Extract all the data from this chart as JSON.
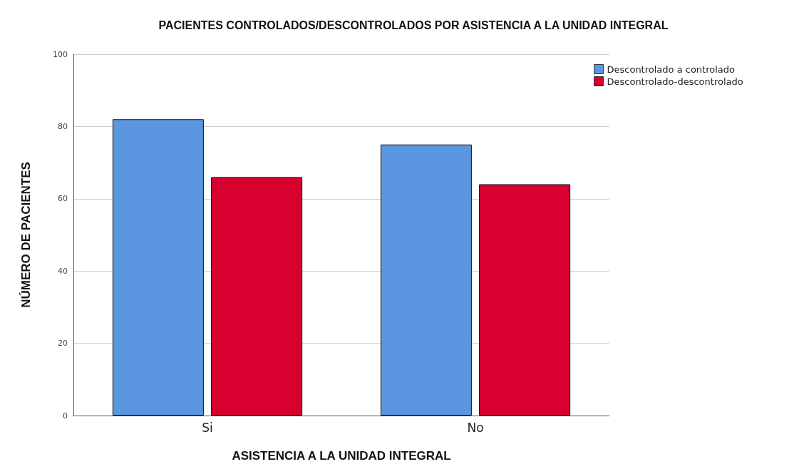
{
  "chart_data": {
    "type": "bar",
    "title": "PACIENTES CONTROLADOS/DESCONTROLADOS POR ASISTENCIA A LA UNIDAD INTEGRAL",
    "xlabel": "ASISTENCIA A LA UNIDAD INTEGRAL",
    "ylabel": "NÚMERO DE PACIENTES",
    "categories": [
      "Si",
      "No"
    ],
    "series": [
      {
        "name": "Descontrolado a controlado",
        "color": "#5b97e0",
        "values": [
          82,
          75
        ]
      },
      {
        "name": "Descontrolado-descontrolado",
        "color": "#d8002f",
        "values": [
          66,
          64
        ]
      }
    ],
    "ylim": [
      0,
      100
    ],
    "yticks": [
      0,
      20,
      40,
      60,
      80,
      100
    ],
    "grid": "y",
    "legend": "top right"
  }
}
